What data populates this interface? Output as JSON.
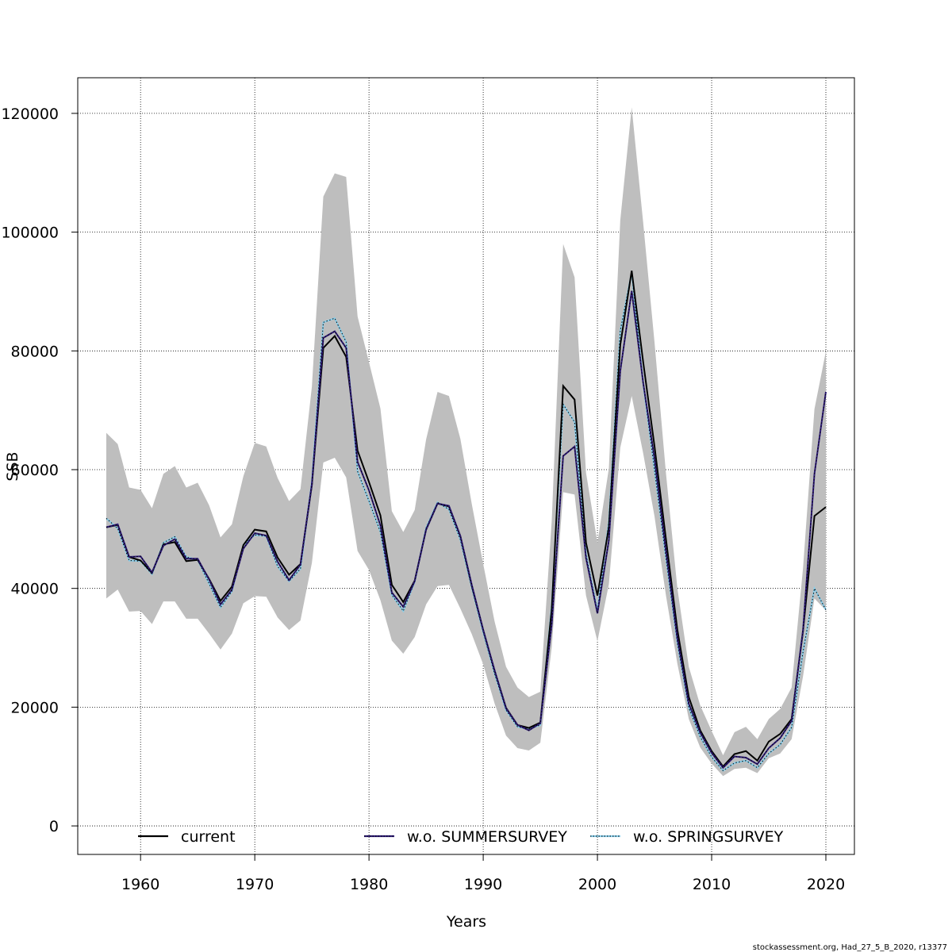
{
  "chart_data": {
    "type": "line",
    "xlabel": "Years",
    "ylabel": "SSB",
    "xlim": [
      1954.5,
      2022.5
    ],
    "ylim": [
      -4800,
      126000
    ],
    "x_ticks": [
      1960,
      1970,
      1980,
      1990,
      2000,
      2010,
      2020
    ],
    "y_ticks": [
      0,
      20000,
      40000,
      60000,
      80000,
      100000,
      120000
    ],
    "x_tick_labels": [
      "1960",
      "1970",
      "1980",
      "1990",
      "2000",
      "2010",
      "2020"
    ],
    "y_tick_labels": [
      "0",
      "20000",
      "40000",
      "60000",
      "80000",
      "100000",
      "120000"
    ],
    "grid": true,
    "legend_position": "bottom",
    "x": [
      1957,
      1958,
      1959,
      1960,
      1961,
      1962,
      1963,
      1964,
      1965,
      1966,
      1967,
      1968,
      1969,
      1970,
      1971,
      1972,
      1973,
      1974,
      1975,
      1976,
      1977,
      1978,
      1979,
      1980,
      1981,
      1982,
      1983,
      1984,
      1985,
      1986,
      1987,
      1988,
      1989,
      1990,
      1991,
      1992,
      1993,
      1994,
      1995,
      1996,
      1997,
      1998,
      1999,
      2000,
      2001,
      2002,
      2003,
      2004,
      2005,
      2006,
      2007,
      2008,
      2009,
      2010,
      2011,
      2012,
      2013,
      2014,
      2015,
      2016,
      2017,
      2018,
      2019,
      2020
    ],
    "band": {
      "color": "#bebebe",
      "upper": [
        66200,
        64300,
        57000,
        56600,
        53500,
        59300,
        60600,
        57000,
        57800,
        54000,
        48600,
        50800,
        58900,
        64500,
        63900,
        58600,
        54700,
        56700,
        74000,
        106000,
        109900,
        109300,
        85800,
        78100,
        70300,
        53000,
        49500,
        53200,
        65100,
        73100,
        72400,
        65200,
        54200,
        44100,
        34400,
        26800,
        23300,
        21700,
        22600,
        51400,
        98000,
        92400,
        59500,
        47700,
        60200,
        102000,
        121000,
        101700,
        81400,
        59400,
        40000,
        26800,
        20300,
        16000,
        11900,
        15800,
        16700,
        14600,
        18000,
        19700,
        23300,
        43400,
        70200,
        79900
      ],
      "lower": [
        38300,
        39800,
        36100,
        36200,
        34000,
        37800,
        37800,
        34900,
        34900,
        32400,
        29700,
        32400,
        37500,
        38700,
        38600,
        35100,
        33000,
        34600,
        44300,
        61200,
        62000,
        58700,
        46300,
        43100,
        38000,
        31200,
        29000,
        31800,
        37300,
        40400,
        40600,
        36600,
        32300,
        27200,
        20600,
        15200,
        13100,
        12700,
        14000,
        30100,
        56200,
        55800,
        38800,
        31100,
        40700,
        63700,
        72400,
        62800,
        52100,
        38800,
        27300,
        18000,
        13200,
        10500,
        8400,
        9600,
        9800,
        8900,
        11400,
        12200,
        14600,
        25200,
        38300,
        36300
      ]
    },
    "series": [
      {
        "name": "current",
        "color": "#000000",
        "values": [
          50300,
          50700,
          45300,
          44700,
          42600,
          47400,
          47800,
          44600,
          44800,
          41600,
          37900,
          40300,
          47300,
          49900,
          49600,
          45200,
          42300,
          44100,
          57400,
          80500,
          82500,
          79000,
          63200,
          57900,
          52300,
          40600,
          37700,
          41300,
          49900,
          54300,
          53800,
          48800,
          40400,
          33000,
          26100,
          19900,
          17000,
          16500,
          17400,
          36500,
          74100,
          71800,
          47700,
          38800,
          50300,
          81000,
          93500,
          78200,
          63900,
          48300,
          33000,
          21700,
          16100,
          12600,
          10000,
          12100,
          12600,
          11000,
          14200,
          15500,
          18000,
          32800,
          52200,
          53700
        ]
      },
      {
        "name": "w.o. SUMMERSURVEY",
        "color": "#2d1a77",
        "values": [
          50300,
          50800,
          45300,
          45400,
          42700,
          47200,
          48300,
          45000,
          45000,
          41500,
          37300,
          39800,
          46700,
          49300,
          48900,
          44500,
          41400,
          44000,
          57600,
          82200,
          83300,
          80500,
          61300,
          56500,
          50600,
          39300,
          36900,
          41200,
          49900,
          54300,
          53900,
          48800,
          40600,
          33000,
          26200,
          19800,
          17000,
          16100,
          17300,
          33900,
          62300,
          63900,
          45100,
          35800,
          48100,
          76600,
          90100,
          74700,
          61800,
          46300,
          31600,
          20600,
          15700,
          12300,
          9800,
          11700,
          11500,
          10400,
          13100,
          14800,
          17700,
          33000,
          59300,
          73100
        ]
      },
      {
        "name": "w.o. SPRINGSURVEY",
        "color": "#87ceeb",
        "values": [
          51800,
          50100,
          44700,
          44600,
          42400,
          47700,
          48700,
          45300,
          44800,
          40800,
          36800,
          39500,
          47300,
          49000,
          48800,
          43700,
          41200,
          43300,
          58000,
          84800,
          85500,
          81500,
          59700,
          54700,
          49500,
          38900,
          36200,
          41100,
          50200,
          54500,
          53300,
          48200,
          40100,
          32600,
          25600,
          19500,
          16700,
          16300,
          17000,
          37200,
          71000,
          68000,
          45800,
          36200,
          51300,
          83400,
          93200,
          74600,
          59900,
          45100,
          30800,
          19900,
          15000,
          11600,
          9300,
          10600,
          11000,
          9800,
          12200,
          13700,
          16600,
          29300,
          40000,
          36400
        ]
      }
    ]
  },
  "footer": {
    "credit": "stockassessment.org, Had_27_5_B_2020, r13377"
  }
}
